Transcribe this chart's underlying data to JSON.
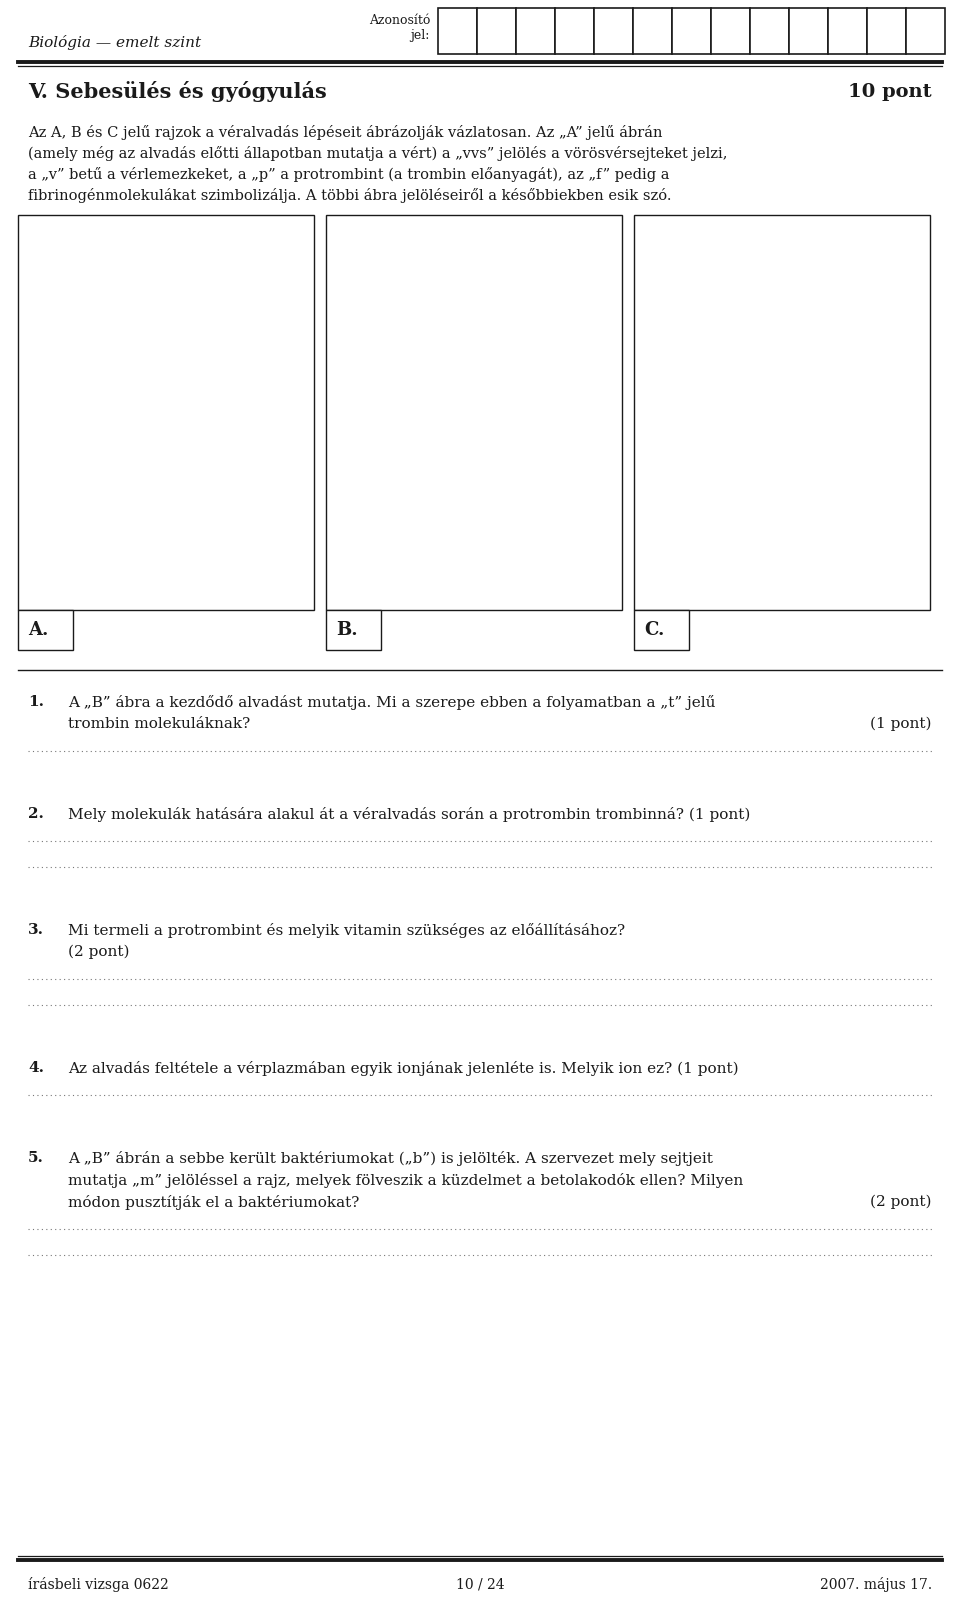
{
  "page_width": 9.6,
  "page_height": 16.04,
  "bg_color": "#ffffff",
  "header_left": "Biológia — emelt szint",
  "header_center_top": "Azonosító",
  "header_center_bottom": "jel:",
  "title": "V. Sebesülés és gyógyulás",
  "title_points": "10 pont",
  "intro_text": "Az A, B és C jelű rajzok a véralvadás lépéseit ábrázolják vázlatosan. Az „A” jelű ábrán\n(amely még az alvadás előtti állapotban mutatja a vért) a „vvs” jelölés a vörösvérsejteket jelzi,\na „v” betű a vérlemezkeket, a „p” a protrombint (a trombin előanyagát), az „f” pedig a\nfibrinogénmolekulákat szimbolizálja. A többi ábra jelöléseiről a későbbiekben esik szó.",
  "fig_labels": [
    "A.",
    "B.",
    "C."
  ],
  "questions": [
    {
      "num": "1.",
      "text_lines": [
        "A „B” ábra a kezdődő alvadást mutatja. Mi a szerepe ebben a folyamatban a „t” jelű",
        "trombin molekuláknak?"
      ],
      "points": "(1 pont)",
      "points_on_line": 1,
      "answer_lines": 1
    },
    {
      "num": "2.",
      "text_lines": [
        "Mely molekulák hatására alakul át a véralvadás során a protrombin trombinná? (1 pont)"
      ],
      "points": "",
      "points_on_line": -1,
      "answer_lines": 2
    },
    {
      "num": "3.",
      "text_lines": [
        "Mi termeli a protrombint és melyik vitamin szükséges az előállításához?",
        "(2 pont)"
      ],
      "points": "",
      "points_on_line": -1,
      "answer_lines": 2
    },
    {
      "num": "4.",
      "text_lines": [
        "Az alvadás feltétele a vérplazmában egyik ionjának jelenléte is. Melyik ion ez? (1 pont)"
      ],
      "points": "",
      "points_on_line": -1,
      "answer_lines": 1
    },
    {
      "num": "5.",
      "text_lines": [
        "A „B” ábrán a sebbe került baktériumokat („b”) is jelölték. A szervezet mely sejtjeit",
        "mutatja „m” jelöléssel a rajz, melyek fölveszik a küzdelmet a betolakodók ellen? Milyen",
        "módon pusztítják el a baktériumokat?"
      ],
      "points": "(2 pont)",
      "points_on_line": 2,
      "answer_lines": 2
    }
  ],
  "footer_left": "írásbeli vizsga 0622",
  "footer_center": "10 / 24",
  "footer_right": "2007. május 17.",
  "text_color": "#1a1a1a",
  "line_color": "#333333",
  "dot_color": "#777777"
}
